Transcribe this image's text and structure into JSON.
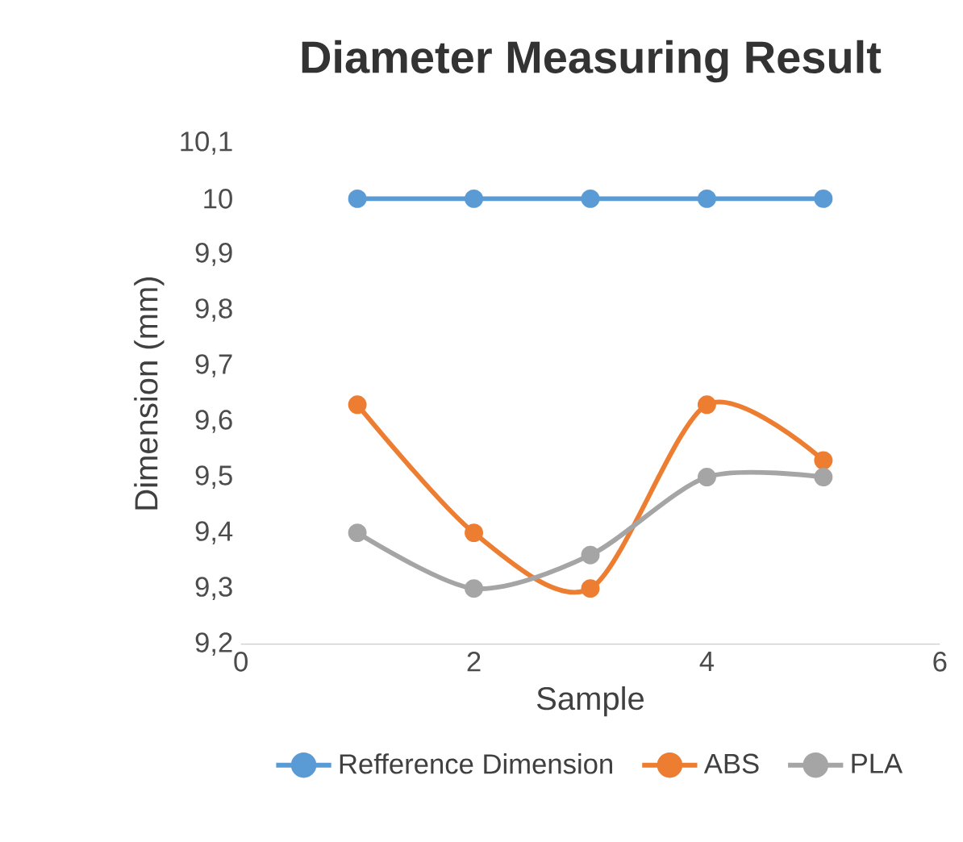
{
  "chart_data": {
    "type": "line",
    "title": "Diameter Measuring Result",
    "xlabel": "Sample",
    "ylabel": "Dimension (mm)",
    "x": [
      1,
      2,
      3,
      4,
      5
    ],
    "series": [
      {
        "name": "Refference Dimension",
        "color": "#5b9bd5",
        "values": [
          10,
          10,
          10,
          10,
          10
        ]
      },
      {
        "name": "ABS",
        "color": "#ed7d31",
        "values": [
          9.63,
          9.4,
          9.3,
          9.63,
          9.53
        ]
      },
      {
        "name": "PLA",
        "color": "#a5a5a5",
        "values": [
          9.4,
          9.3,
          9.36,
          9.5,
          9.5
        ]
      }
    ],
    "xlim": [
      0,
      6
    ],
    "xticks": [
      0,
      2,
      4,
      6
    ],
    "ylim": [
      9.2,
      10.1
    ],
    "yticks": [
      {
        "value": 9.2,
        "label": "9,2"
      },
      {
        "value": 9.3,
        "label": "9,3"
      },
      {
        "value": 9.4,
        "label": "9,4"
      },
      {
        "value": 9.5,
        "label": "9,5"
      },
      {
        "value": 9.6,
        "label": "9,6"
      },
      {
        "value": 9.7,
        "label": "9,7"
      },
      {
        "value": 9.8,
        "label": "9,8"
      },
      {
        "value": 9.9,
        "label": "9,9"
      },
      {
        "value": 10,
        "label": "10"
      },
      {
        "value": 10.1,
        "label": "10,1"
      }
    ],
    "grid": false,
    "legend": "bottom",
    "marker": "circle",
    "line_style": "solid"
  }
}
